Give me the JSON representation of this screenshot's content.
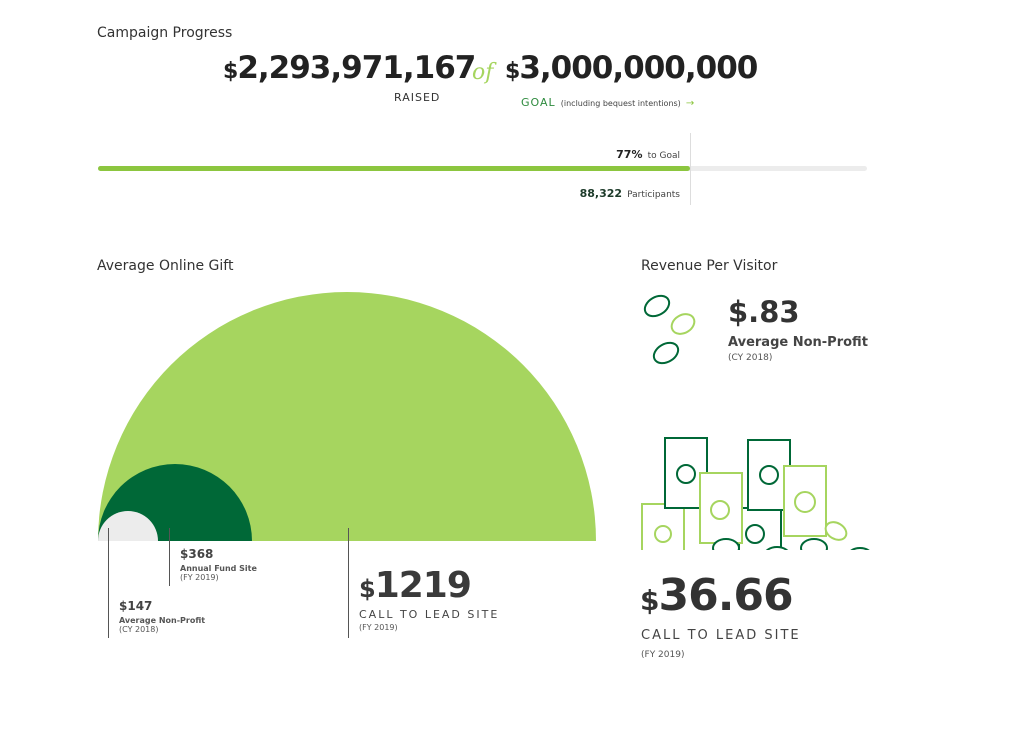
{
  "campaign": {
    "title": "Campaign Progress",
    "currency": "$",
    "raised": "2,293,971,167",
    "raised_label": "RAISED",
    "of": "of",
    "goal": "3,000,000,000",
    "goal_label": "GOAL",
    "goal_note": "(including bequest intentions)",
    "goal_arrow": "→",
    "percent": "77%",
    "percent_label": "to Goal",
    "progress_fraction": 0.77,
    "participants": "88,322",
    "participants_label": "Participants"
  },
  "gift": {
    "title": "Average Online Gift",
    "items": [
      {
        "value": "$147",
        "label": "Average Non-Profit",
        "period": "(CY 2018)"
      },
      {
        "value": "$368",
        "label": "Annual Fund Site",
        "period": "(FY 2019)"
      },
      {
        "currency": "$",
        "value": "1219",
        "label": "CALL TO LEAD SITE",
        "period": "(FY 2019)"
      }
    ]
  },
  "rpv": {
    "title": "Revenue Per Visitor",
    "avg_value": "$.83",
    "avg_label": "Average Non-Profit",
    "avg_period": "(CY 2018)",
    "currency": "$",
    "ctl_value": "36.66",
    "ctl_label": "CALL TO LEAD SITE",
    "ctl_period": "(FY 2019)"
  },
  "colors": {
    "light_green": "#a6d55f",
    "dark_green": "#006837",
    "gray": "#ececec",
    "text": "#333333"
  }
}
